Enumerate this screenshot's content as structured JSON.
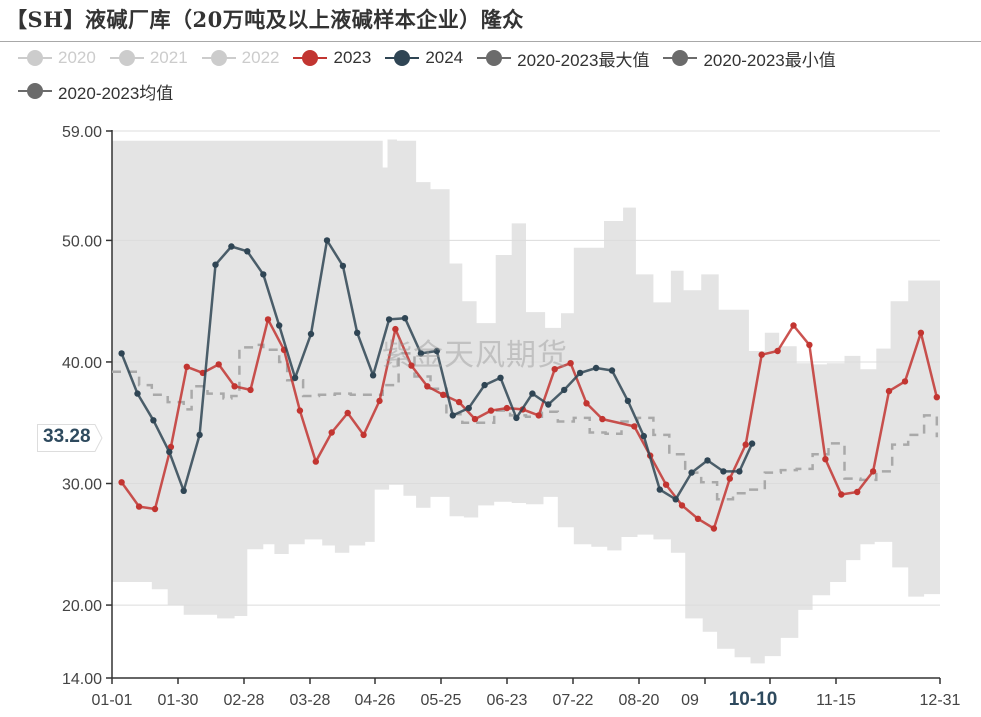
{
  "title": "【SH】液碱厂库（20万吨及以上液碱样本企业）隆众",
  "watermark": "紫金天风期货",
  "pointer_value": "33.28",
  "legend": [
    {
      "label": "2020",
      "color": "#cccccc",
      "active": false
    },
    {
      "label": "2021",
      "color": "#cccccc",
      "active": false
    },
    {
      "label": "2022",
      "color": "#cccccc",
      "active": false
    },
    {
      "label": "2023",
      "color": "#c23531",
      "active": true
    },
    {
      "label": "2024",
      "color": "#2f4554",
      "active": true
    },
    {
      "label": "2020-2023最大值",
      "color": "#6b6b6b",
      "active": true
    },
    {
      "label": "2020-2023最小值",
      "color": "#6b6b6b",
      "active": true
    },
    {
      "label": "2020-2023均值",
      "color": "#6b6b6b",
      "active": true
    }
  ],
  "colors": {
    "s2023": "#c23531",
    "s2024": "#2f4554",
    "band": "#e4e4e4",
    "mean": "#a9a9a9",
    "axis": "#333333",
    "grid": "#dcdcdc"
  },
  "chart_data": {
    "type": "line",
    "title": "【SH】液碱厂库（20万吨及以上液碱样本企业）隆众",
    "xlabel": "",
    "ylabel": "",
    "ylim": [
      14,
      59
    ],
    "yticks": [
      "14.00",
      "20.00",
      "30.00",
      "40.00",
      "50.00",
      "59.00"
    ],
    "xticks": [
      "01-01",
      "01-30",
      "02-28",
      "03-28",
      "04-26",
      "05-25",
      "06-23",
      "07-22",
      "08-20",
      "09",
      "10-10",
      "11-15",
      "12-31"
    ],
    "highlighted_xtick": "10-10",
    "grid": true,
    "legend_position": "top",
    "week_index_note": "x values are approximate week index 0-52 (01-01=0, 12-31=52)",
    "series": [
      {
        "name": "2023",
        "x": [
          0.6,
          1.7,
          2.7,
          3.7,
          4.7,
          5.7,
          6.7,
          7.7,
          8.7,
          9.8,
          10.8,
          11.8,
          12.8,
          13.8,
          14.8,
          15.8,
          16.8,
          17.8,
          18.8,
          19.8,
          20.8,
          21.8,
          22.8,
          23.8,
          24.8,
          25.8,
          26.8,
          27.8,
          28.8,
          29.8,
          30.8,
          32.8,
          33.8,
          34.8,
          35.8,
          36.8,
          37.8,
          38.8,
          39.8,
          40.8,
          41.8,
          42.8,
          43.8,
          44.8,
          45.8,
          46.8,
          47.8,
          48.8,
          49.8,
          50.8,
          51.8
        ],
        "values": [
          30.1,
          28.1,
          27.9,
          33.0,
          39.6,
          39.1,
          39.8,
          38.0,
          37.7,
          43.5,
          41.0,
          36.0,
          31.8,
          34.2,
          35.8,
          34.0,
          36.8,
          42.7,
          39.7,
          38.0,
          37.3,
          36.7,
          35.3,
          36.0,
          36.2,
          36.1,
          35.6,
          39.4,
          39.9,
          36.6,
          35.3,
          34.7,
          32.3,
          29.9,
          28.2,
          27.1,
          26.3,
          30.4,
          33.2,
          40.6,
          40.9,
          43.0,
          41.4,
          32.0,
          29.1,
          29.3,
          31.0,
          37.6,
          38.4,
          42.4,
          37.1
        ]
      },
      {
        "name": "2024",
        "x": [
          0.6,
          1.6,
          2.6,
          3.6,
          4.5,
          5.5,
          6.5,
          7.5,
          8.5,
          9.5,
          10.5,
          11.5,
          12.5,
          13.5,
          14.5,
          15.4,
          16.4,
          17.4,
          18.4,
          19.4,
          20.4,
          21.4,
          22.4,
          23.4,
          24.4,
          25.4,
          26.4,
          27.4,
          28.4,
          29.4,
          30.4,
          31.4,
          32.4,
          33.4,
          34.4,
          35.4,
          36.4,
          37.4,
          38.4,
          39.4,
          40.2
        ],
        "values": [
          40.7,
          37.4,
          35.2,
          32.6,
          29.4,
          34.0,
          48.0,
          49.5,
          49.1,
          47.2,
          43.0,
          38.7,
          42.3,
          50.0,
          47.9,
          42.4,
          38.9,
          43.5,
          43.6,
          40.7,
          40.9,
          35.6,
          36.2,
          38.1,
          38.7,
          35.4,
          37.4,
          36.5,
          37.7,
          39.1,
          39.5,
          39.3,
          36.8,
          33.9,
          29.5,
          28.7,
          30.9,
          31.9,
          31.0,
          31.0,
          33.28
        ]
      },
      {
        "name": "2020-2023最大值",
        "style": "step-area-top",
        "x": [
          0,
          16.1,
          17.0,
          17.3,
          17.9,
          18.3,
          19.1,
          20.0,
          21.2,
          22.0,
          22.9,
          24.1,
          25.1,
          26.0,
          27.2,
          28.2,
          29.0,
          30.9,
          32.1,
          32.9,
          34.0,
          35.1,
          35.9,
          37.0,
          38.1,
          39.0,
          40.0,
          41.0,
          41.9,
          43.0,
          44.0,
          44.9,
          46.0,
          47.0,
          48.0,
          48.9,
          50.0,
          51.0,
          52
        ],
        "values": [
          58.2,
          58.2,
          56.0,
          58.3,
          58.2,
          58.2,
          54.8,
          54.2,
          48.1,
          45.0,
          43.2,
          48.8,
          51.4,
          44.1,
          42.8,
          44.0,
          49.4,
          51.6,
          52.7,
          47.2,
          44.9,
          47.5,
          45.9,
          47.2,
          44.3,
          44.3,
          40.9,
          42.4,
          41.3,
          39.9,
          39.8,
          39.9,
          40.5,
          39.4,
          41.1,
          45.0,
          46.7,
          46.7,
          46.7
        ]
      },
      {
        "name": "2020-2023最小值",
        "style": "step-area-bottom",
        "x": [
          0,
          1.7,
          2.5,
          3.5,
          4.5,
          6.0,
          6.6,
          7.7,
          8.5,
          9.5,
          10.2,
          11.1,
          12.1,
          13.2,
          14.0,
          14.9,
          15.9,
          16.5,
          17.4,
          18.3,
          19.1,
          20.0,
          21.2,
          22.1,
          23.0,
          24.0,
          25.1,
          26.0,
          27.1,
          28.0,
          29.0,
          30.1,
          31.1,
          32.0,
          33.0,
          34.0,
          35.1,
          36.0,
          37.1,
          38.0,
          39.1,
          40.1,
          41.0,
          42.0,
          43.1,
          44.0,
          45.1,
          46.1,
          47.0,
          47.9,
          49.0,
          50.0,
          51.0,
          52
        ],
        "values": [
          21.9,
          21.9,
          21.3,
          20.0,
          19.2,
          19.2,
          18.9,
          19.1,
          24.6,
          25.0,
          24.2,
          25.0,
          25.4,
          24.9,
          24.3,
          24.9,
          25.2,
          29.5,
          29.9,
          29.0,
          28.0,
          28.9,
          27.3,
          27.2,
          28.2,
          28.5,
          28.4,
          28.3,
          28.9,
          26.4,
          25.0,
          24.8,
          24.5,
          25.6,
          25.8,
          25.4,
          24.3,
          18.9,
          17.8,
          16.4,
          15.7,
          15.2,
          15.8,
          17.3,
          19.6,
          20.8,
          21.9,
          23.7,
          25.0,
          25.2,
          23.1,
          20.7,
          20.9,
          20.9
        ]
      },
      {
        "name": "2020-2023均值",
        "style": "dashed-step",
        "x": [
          0,
          1.0,
          1.7,
          2.5,
          3.5,
          4.5,
          5.0,
          6.0,
          7.0,
          7.5,
          8.0,
          9.0,
          9.5,
          10.5,
          11.0,
          12.0,
          13.0,
          14.0,
          15.0,
          16.0,
          17.0,
          18.0,
          19.0,
          20.0,
          21.0,
          22.0,
          23.0,
          24.0,
          25.0,
          26.0,
          27.0,
          28.0,
          29.0,
          30.0,
          31.0,
          32.0,
          33.0,
          34.0,
          35.0,
          36.0,
          37.0,
          38.0,
          39.0,
          40.0,
          41.0,
          42.0,
          43.0,
          44.0,
          45.0,
          46.0,
          47.0,
          48.0,
          49.0,
          50.0,
          51.0,
          51.8
        ],
        "values": [
          39.2,
          39.2,
          38.1,
          37.3,
          36.7,
          36.1,
          38.0,
          37.4,
          37.0,
          37.2,
          41.2,
          41.4,
          41.0,
          40.0,
          38.5,
          37.2,
          37.3,
          37.4,
          37.3,
          37.3,
          38.1,
          40.7,
          38.8,
          37.8,
          35.7,
          35.0,
          35.0,
          36.0,
          35.6,
          35.5,
          35.9,
          35.1,
          35.4,
          34.2,
          34.1,
          35.1,
          35.4,
          34.0,
          32.4,
          30.9,
          30.1,
          28.7,
          29.2,
          29.5,
          30.9,
          31.1,
          31.2,
          32.4,
          33.3,
          30.4,
          30.3,
          31.0,
          33.2,
          34.0,
          35.6,
          33.8
        ]
      }
    ]
  }
}
